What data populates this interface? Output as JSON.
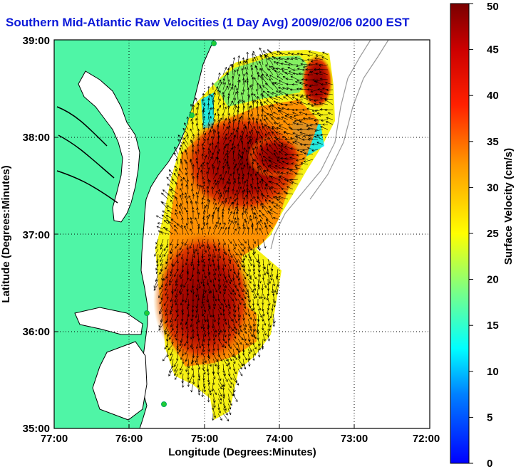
{
  "title": "Southern Mid-Atlantic Raw Velocities (1 Day Avg) 2009/02/06 0200 EST",
  "map": {
    "xlabel": "Longitude (Degrees:Minutes)",
    "ylabel": "Latitude (Degrees:Minutes)",
    "lon_ticks": [
      "77:00",
      "76:00",
      "75:00",
      "74:00",
      "73:00",
      "72:00"
    ],
    "lat_ticks": [
      "39:00",
      "38:00",
      "37:00",
      "36:00",
      "35:00"
    ],
    "lon_range": [
      -77,
      -72
    ],
    "lat_range": [
      35,
      39
    ],
    "grid": true
  },
  "colorbar": {
    "label": "Surface Velocity (cm/s)",
    "ticks": [
      "50",
      "45",
      "40",
      "35",
      "30",
      "25",
      "20",
      "15",
      "10",
      "5",
      "0"
    ],
    "range": [
      0,
      50
    ]
  },
  "colors": {
    "land": "#4ff5a6",
    "water": "#ffffff",
    "title": "#0a18d8",
    "station": "#22cc33"
  }
}
